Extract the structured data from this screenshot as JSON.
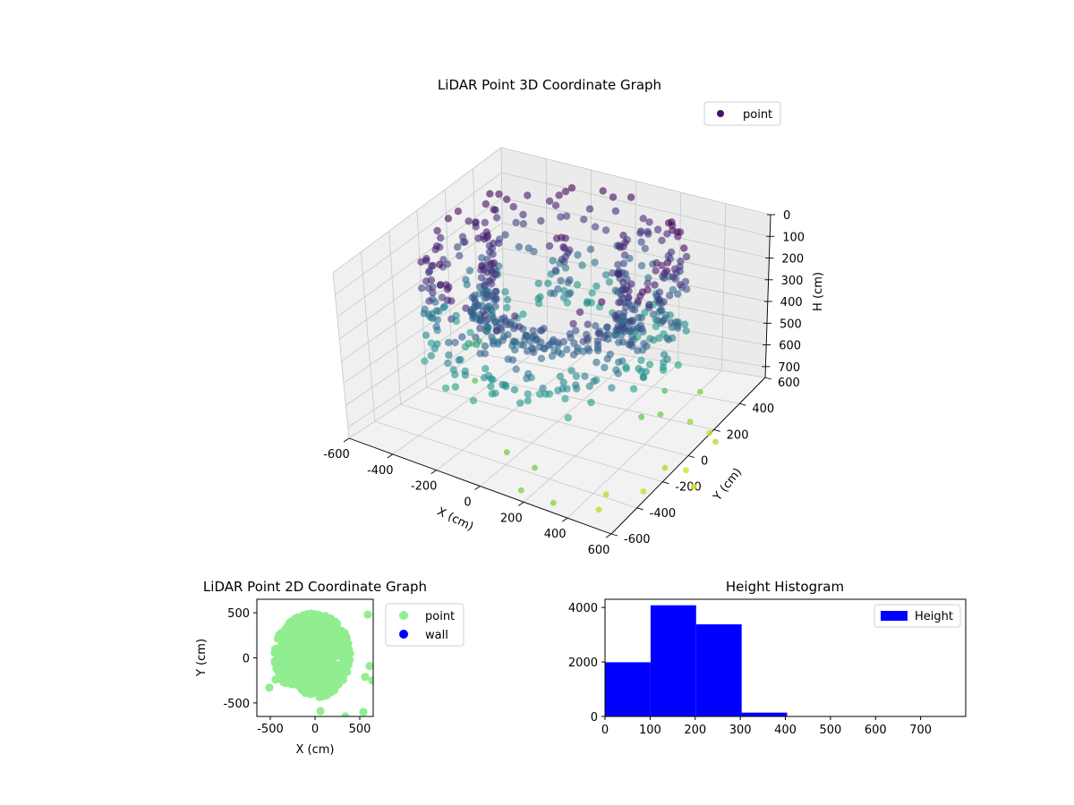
{
  "chart_data": [
    {
      "type": "scatter3d",
      "title": "LiDAR Point 3D Coordinate Graph",
      "xlabel": "X (cm)",
      "ylabel": "Y (cm)",
      "zlabel": "H (cm)",
      "xlim": [
        -600,
        600
      ],
      "ylim": [
        -600,
        600
      ],
      "zlim": [
        0,
        750
      ],
      "z_inverted": true,
      "xticks": [
        -600,
        -400,
        -200,
        0,
        200,
        400,
        600
      ],
      "yticks": [
        -600,
        -400,
        -200,
        0,
        200,
        400,
        600
      ],
      "zticks": [
        0,
        100,
        200,
        300,
        400,
        500,
        600,
        700
      ],
      "grid": true,
      "colormap": "viridis",
      "legend": {
        "placement": "top-right",
        "entries": [
          {
            "name": "point",
            "color": "#46146f"
          }
        ]
      },
      "shell": {
        "radius": 500,
        "h_top": 0,
        "h_bottom": 400,
        "inner_radius": 300,
        "inner_h_bottom": 300
      },
      "outliers": [
        {
          "x": -420,
          "y": 120,
          "h": 560
        },
        {
          "x": -540,
          "y": 260,
          "h": 650
        },
        {
          "x": -300,
          "y": -120,
          "h": 600
        },
        {
          "x": 80,
          "y": -520,
          "h": 620
        },
        {
          "x": 230,
          "y": -560,
          "h": 620
        },
        {
          "x": 250,
          "y": -700,
          "h": 640
        },
        {
          "x": 390,
          "y": -690,
          "h": 650
        },
        {
          "x": 520,
          "y": -560,
          "h": 700
        },
        {
          "x": 500,
          "y": -470,
          "h": 690
        },
        {
          "x": 600,
          "y": -350,
          "h": 710
        },
        {
          "x": 610,
          "y": -200,
          "h": 690
        },
        {
          "x": 660,
          "y": -120,
          "h": 730
        },
        {
          "x": 720,
          "y": -160,
          "h": 760
        },
        {
          "x": 700,
          "y": 40,
          "h": 690
        },
        {
          "x": 560,
          "y": 80,
          "h": 660
        },
        {
          "x": 460,
          "y": 20,
          "h": 620
        },
        {
          "x": 420,
          "y": 120,
          "h": 580
        },
        {
          "x": 500,
          "y": 260,
          "h": 640
        },
        {
          "x": 420,
          "y": -60,
          "h": 600
        },
        {
          "x": 620,
          "y": 130,
          "h": 720
        }
      ]
    },
    {
      "type": "scatter",
      "title": "LiDAR Point 2D Coordinate Graph",
      "xlabel": "X (cm)",
      "ylabel": "Y (cm)",
      "xlim": [
        -650,
        650
      ],
      "ylim": [
        -650,
        650
      ],
      "xticks": [
        -500,
        0,
        500
      ],
      "yticks": [
        -500,
        0,
        500
      ],
      "legend": {
        "placement": "outside-right",
        "entries": [
          {
            "name": "point",
            "color": "#90ee90"
          },
          {
            "name": "wall",
            "color": "#0000ff"
          }
        ]
      },
      "cloud": {
        "center_x": -30,
        "center_y": 30,
        "radius_x": 430,
        "radius_y": 470
      },
      "outliers": [
        {
          "x": -510,
          "y": -330
        },
        {
          "x": -440,
          "y": -240
        },
        {
          "x": 60,
          "y": -590
        },
        {
          "x": 340,
          "y": -650
        },
        {
          "x": 540,
          "y": -600
        },
        {
          "x": 610,
          "y": -90
        },
        {
          "x": 640,
          "y": -250
        },
        {
          "x": 560,
          "y": -210
        },
        {
          "x": 590,
          "y": 480
        }
      ]
    },
    {
      "type": "bar",
      "title": "Height Histogram",
      "xlabel": "",
      "ylabel": "",
      "series": [
        {
          "name": "Height",
          "color": "#0000ff"
        }
      ],
      "bins": [
        {
          "start": 0,
          "end": 101,
          "count": 1990
        },
        {
          "start": 101,
          "end": 202,
          "count": 4080
        },
        {
          "start": 202,
          "end": 303,
          "count": 3380
        },
        {
          "start": 303,
          "end": 404,
          "count": 140
        },
        {
          "start": 404,
          "end": 505,
          "count": 5
        },
        {
          "start": 505,
          "end": 606,
          "count": 3
        },
        {
          "start": 606,
          "end": 707,
          "count": 2
        },
        {
          "start": 707,
          "end": 800,
          "count": 1
        }
      ],
      "xlim": [
        0,
        800
      ],
      "ylim": [
        0,
        4300
      ],
      "xticks": [
        0,
        100,
        200,
        300,
        400,
        500,
        600,
        700
      ],
      "yticks": [
        0,
        2000,
        4000
      ],
      "legend": {
        "placement": "top-right"
      }
    }
  ]
}
